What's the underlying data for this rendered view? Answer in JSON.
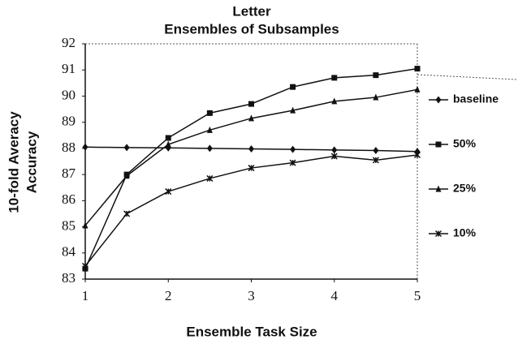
{
  "chart_data": {
    "type": "line",
    "title": "Letter",
    "subtitle": "Ensembles of Subsamples",
    "y_label": [
      "10-fold Averacy",
      "Accuracy"
    ],
    "x_label": "Ensemble Task Size",
    "x": [
      1,
      1.5,
      2,
      2.5,
      3,
      3.5,
      4,
      4.5,
      5
    ],
    "xlim": [
      1,
      5
    ],
    "xticks": [
      1,
      2,
      3,
      4,
      5
    ],
    "ylim": [
      83,
      92
    ],
    "yticks": [
      83,
      84,
      85,
      86,
      87,
      88,
      89,
      90,
      91,
      92
    ],
    "series": [
      {
        "name": "baseline",
        "color": "#111111",
        "marker": "diamond",
        "values": [
          88.05,
          88.03,
          88.02,
          88.0,
          87.98,
          87.96,
          87.94,
          87.92,
          87.88
        ]
      },
      {
        "name": "50%",
        "color": "#111111",
        "marker": "square",
        "values": [
          83.4,
          87.0,
          88.4,
          89.35,
          89.7,
          90.35,
          90.7,
          90.8,
          91.05
        ]
      },
      {
        "name": "25%",
        "color": "#111111",
        "marker": "triangle",
        "values": [
          85.05,
          86.95,
          88.15,
          88.7,
          89.15,
          89.45,
          89.8,
          89.95,
          90.25
        ]
      },
      {
        "name": "10%",
        "color": "#111111",
        "marker": "star",
        "values": [
          83.5,
          85.5,
          86.35,
          86.85,
          87.25,
          87.45,
          87.7,
          87.55,
          87.75
        ]
      }
    ],
    "legend": "right"
  }
}
